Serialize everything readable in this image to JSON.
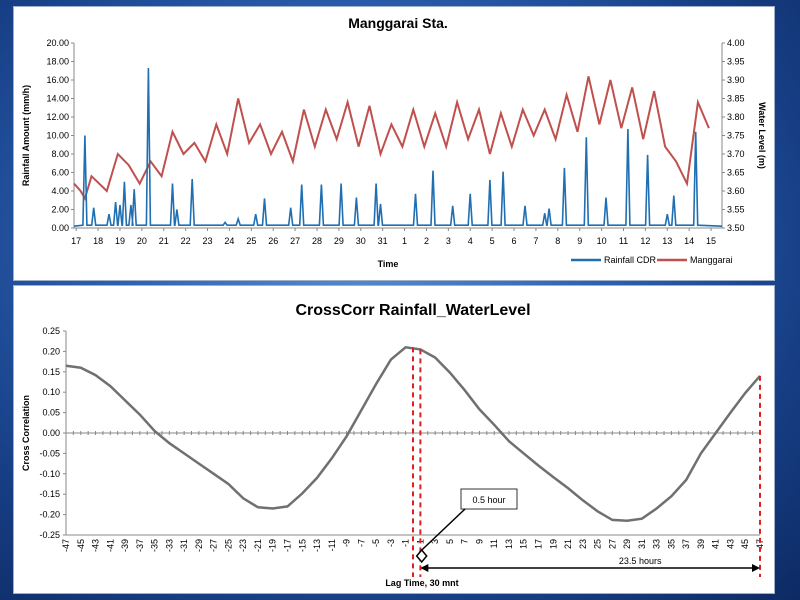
{
  "chart_data": [
    {
      "type": "line",
      "title": "Manggarai Sta.",
      "xlabel": "Time",
      "ylabel": "Rainfall Amount (mm/h)",
      "y2label": "Water Level (m)",
      "ylim": [
        0,
        20
      ],
      "y2lim": [
        3.5,
        4.0
      ],
      "y_ticks": [
        "20.00",
        "18.00",
        "16.00",
        "14.00",
        "12.00",
        "10.00",
        "8.00",
        "6.00",
        "4.00",
        "2.00",
        "0.00"
      ],
      "y2_ticks": [
        "4.00",
        "3.95",
        "3.90",
        "3.85",
        "3.80",
        "3.75",
        "3.70",
        "3.65",
        "3.60",
        "3.55",
        "3.50"
      ],
      "x_ticks": [
        "17",
        "18",
        "19",
        "20",
        "21",
        "22",
        "23",
        "24",
        "25",
        "26",
        "27",
        "28",
        "29",
        "30",
        "31",
        "1",
        "2",
        "3",
        "4",
        "5",
        "6",
        "7",
        "8",
        "9",
        "10",
        "11",
        "12",
        "13",
        "14",
        "15"
      ],
      "legend_position": "bottom-right",
      "series": [
        {
          "name": "Rainfall CDR",
          "axis": "left",
          "color": "#1f6fb2",
          "peaks": [
            [
              0.5,
              10.0
            ],
            [
              0.9,
              2.2
            ],
            [
              1.6,
              1.5
            ],
            [
              1.9,
              2.8
            ],
            [
              2.1,
              2.5
            ],
            [
              2.3,
              5.0
            ],
            [
              2.6,
              2.5
            ],
            [
              2.75,
              4.2
            ],
            [
              3.4,
              17.3
            ],
            [
              4.5,
              4.8
            ],
            [
              4.7,
              2.0
            ],
            [
              5.4,
              5.3
            ],
            [
              6.9,
              0.6
            ],
            [
              7.5,
              1.0
            ],
            [
              8.3,
              1.5
            ],
            [
              8.7,
              3.2
            ],
            [
              9.9,
              2.2
            ],
            [
              10.4,
              4.7
            ],
            [
              11.3,
              4.7
            ],
            [
              12.2,
              4.8
            ],
            [
              12.9,
              3.3
            ],
            [
              13.8,
              4.8
            ],
            [
              14.0,
              2.6
            ],
            [
              15.6,
              3.7
            ],
            [
              16.4,
              6.2
            ],
            [
              17.3,
              2.4
            ],
            [
              18.1,
              3.7
            ],
            [
              19.0,
              5.2
            ],
            [
              19.6,
              6.1
            ],
            [
              20.6,
              2.4
            ],
            [
              21.5,
              1.6
            ],
            [
              21.7,
              2.1
            ],
            [
              22.4,
              6.5
            ],
            [
              23.4,
              9.8
            ],
            [
              24.3,
              3.3
            ],
            [
              25.3,
              10.7
            ],
            [
              26.2,
              7.9
            ],
            [
              27.1,
              1.5
            ],
            [
              27.4,
              3.5
            ],
            [
              28.4,
              10.4
            ]
          ]
        },
        {
          "name": "Manggarai",
          "axis": "right",
          "color": "#c0504d",
          "x": [
            0.0,
            0.3,
            0.5,
            0.8,
            1.5,
            2.0,
            2.5,
            3.0,
            3.5,
            4.0,
            4.5,
            5.0,
            5.5,
            6.0,
            6.5,
            7.0,
            7.5,
            8.0,
            8.5,
            9.0,
            9.5,
            10.0,
            10.5,
            11.0,
            11.5,
            12.0,
            12.5,
            13.0,
            13.5,
            14.0,
            14.5,
            15.0,
            15.5,
            16.0,
            16.5,
            17.0,
            17.5,
            18.0,
            18.5,
            19.0,
            19.5,
            20.0,
            20.5,
            21.0,
            21.5,
            22.0,
            22.5,
            23.0,
            23.5,
            24.0,
            24.5,
            25.0,
            25.5,
            26.0,
            26.5,
            27.0,
            27.5,
            28.0,
            28.5,
            29.0
          ],
          "values": [
            3.62,
            3.6,
            3.58,
            3.64,
            3.6,
            3.7,
            3.67,
            3.62,
            3.68,
            3.64,
            3.76,
            3.7,
            3.73,
            3.68,
            3.78,
            3.7,
            3.85,
            3.73,
            3.78,
            3.7,
            3.76,
            3.68,
            3.82,
            3.72,
            3.82,
            3.74,
            3.84,
            3.72,
            3.83,
            3.7,
            3.78,
            3.72,
            3.82,
            3.72,
            3.81,
            3.72,
            3.84,
            3.74,
            3.82,
            3.7,
            3.81,
            3.72,
            3.82,
            3.75,
            3.82,
            3.74,
            3.86,
            3.76,
            3.91,
            3.78,
            3.9,
            3.77,
            3.88,
            3.74,
            3.87,
            3.72,
            3.68,
            3.62,
            3.84,
            3.77
          ]
        }
      ]
    },
    {
      "type": "line",
      "title": "CrossCorr Rainfall_WaterLevel",
      "xlabel": "Lag Time, 30 mnt",
      "ylabel": "Cross Correlation",
      "ylim": [
        -0.25,
        0.25
      ],
      "y_ticks": [
        "0.25",
        "0.20",
        "0.15",
        "0.10",
        "0.05",
        "0.00",
        "-0.05",
        "-0.10",
        "-0.15",
        "-0.20",
        "-0.25"
      ],
      "x_ticks": [
        "-47",
        "-45",
        "-43",
        "-41",
        "-39",
        "-37",
        "-35",
        "-33",
        "-31",
        "-29",
        "-27",
        "-25",
        "-23",
        "-21",
        "-19",
        "-17",
        "-15",
        "-13",
        "-11",
        "-9",
        "-7",
        "-5",
        "-3",
        "-1",
        "1",
        "3",
        "5",
        "7",
        "9",
        "11",
        "13",
        "15",
        "17",
        "19",
        "21",
        "23",
        "25",
        "27",
        "29",
        "31",
        "33",
        "35",
        "37",
        "39",
        "41",
        "43",
        "45",
        "47"
      ],
      "series": [
        {
          "name": "",
          "color": "#707070",
          "x": [
            -47,
            -45,
            -43,
            -41,
            -39,
            -37,
            -35,
            -33,
            -31,
            -29,
            -27,
            -25,
            -23,
            -21,
            -19,
            -17,
            -15,
            -13,
            -11,
            -9,
            -7,
            -5,
            -3,
            -1,
            1,
            3,
            5,
            7,
            9,
            11,
            13,
            15,
            17,
            19,
            21,
            23,
            25,
            27,
            29,
            31,
            33,
            35,
            37,
            39,
            41,
            43,
            45,
            47
          ],
          "values": [
            0.165,
            0.16,
            0.142,
            0.115,
            0.08,
            0.045,
            0.005,
            -0.025,
            -0.05,
            -0.075,
            -0.1,
            -0.125,
            -0.16,
            -0.182,
            -0.185,
            -0.18,
            -0.148,
            -0.11,
            -0.062,
            -0.008,
            0.056,
            0.12,
            0.18,
            0.21,
            0.205,
            0.185,
            0.148,
            0.105,
            0.058,
            0.02,
            -0.02,
            -0.05,
            -0.08,
            -0.108,
            -0.135,
            -0.165,
            -0.192,
            -0.213,
            -0.215,
            -0.21,
            -0.185,
            -0.155,
            -0.115,
            -0.05,
            0.0,
            0.05,
            0.098,
            0.14
          ]
        }
      ],
      "markers": [
        0,
        1,
        47
      ],
      "annotations": [
        "0.5 hour",
        "23.5 hours"
      ]
    }
  ]
}
